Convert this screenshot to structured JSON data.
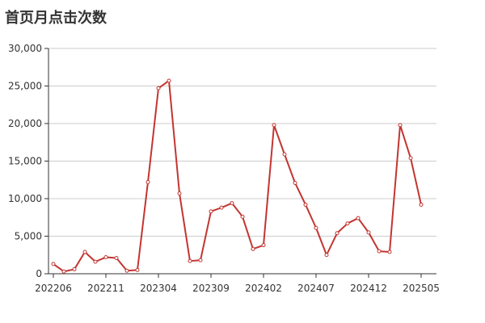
{
  "chart_data": {
    "type": "line",
    "title": "首页月点击次数",
    "xlabel": "",
    "ylabel": "",
    "ylim": [
      0,
      30000
    ],
    "y_ticks": [
      0,
      5000,
      10000,
      15000,
      20000,
      25000,
      30000
    ],
    "y_tick_labels": [
      "0",
      "5,000",
      "10,000",
      "15,000",
      "20,000",
      "25,000",
      "30,000"
    ],
    "x_tick_labels": [
      "202206",
      "202211",
      "202304",
      "202309",
      "202402",
      "202407",
      "202412",
      "202505"
    ],
    "grid": true,
    "legend": "none",
    "x": [
      "202206",
      "202207",
      "202208",
      "202209",
      "202210",
      "202211",
      "202212",
      "202301",
      "202302",
      "202303",
      "202304",
      "202305",
      "202306",
      "202307",
      "202308",
      "202309",
      "202310",
      "202311",
      "202312",
      "202401",
      "202402",
      "202403",
      "202404",
      "202405",
      "202406",
      "202407",
      "202408",
      "202409",
      "202410",
      "202411",
      "202412",
      "202501",
      "202502",
      "202503",
      "202504",
      "202505"
    ],
    "series": [
      {
        "color": "#c23531",
        "values": [
          1300,
          300,
          600,
          2900,
          1600,
          2200,
          2100,
          400,
          500,
          12200,
          24700,
          25700,
          10700,
          1700,
          1800,
          8300,
          8800,
          9400,
          7600,
          3300,
          3800,
          19800,
          15900,
          12100,
          9200,
          6100,
          2500,
          5400,
          6700,
          7400,
          5500,
          3000,
          2900,
          19800,
          15400,
          9200
        ]
      }
    ]
  }
}
